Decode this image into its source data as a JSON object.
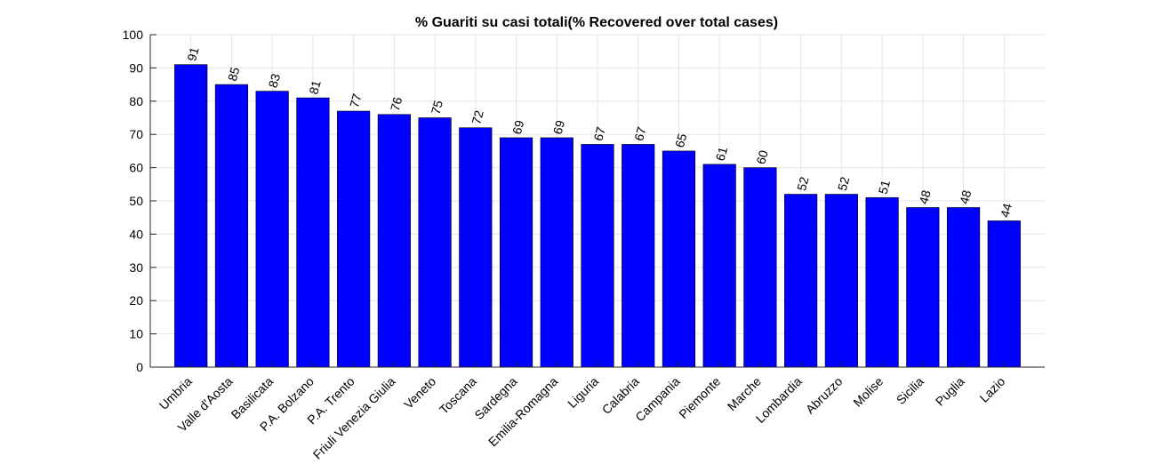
{
  "chart_data": {
    "type": "bar",
    "title": "% Guariti su casi totali(% Recovered over total cases)",
    "xlabel": "",
    "ylabel": "",
    "ylim": [
      0,
      100
    ],
    "yticks": [
      0,
      10,
      20,
      30,
      40,
      50,
      60,
      70,
      80,
      90,
      100
    ],
    "grid": true,
    "categories": [
      "Umbria",
      "Valle d'Aosta",
      "Basilicata",
      "P.A. Bolzano",
      "P.A. Trento",
      "Friuli Venezia Giulia",
      "Veneto",
      "Toscana",
      "Sardegna",
      "Emilia-Romagna",
      "Liguria",
      "Calabria",
      "Campania",
      "Piemonte",
      "Marche",
      "Lombardia",
      "Abruzzo",
      "Molise",
      "Sicilia",
      "Puglia",
      "Lazio"
    ],
    "values": [
      91,
      85,
      83,
      81,
      77,
      76,
      75,
      72,
      69,
      69,
      67,
      67,
      65,
      61,
      60,
      52,
      52,
      51,
      48,
      48,
      44
    ],
    "bar_color": "#0000ff",
    "bar_edge_color": "#000000"
  }
}
